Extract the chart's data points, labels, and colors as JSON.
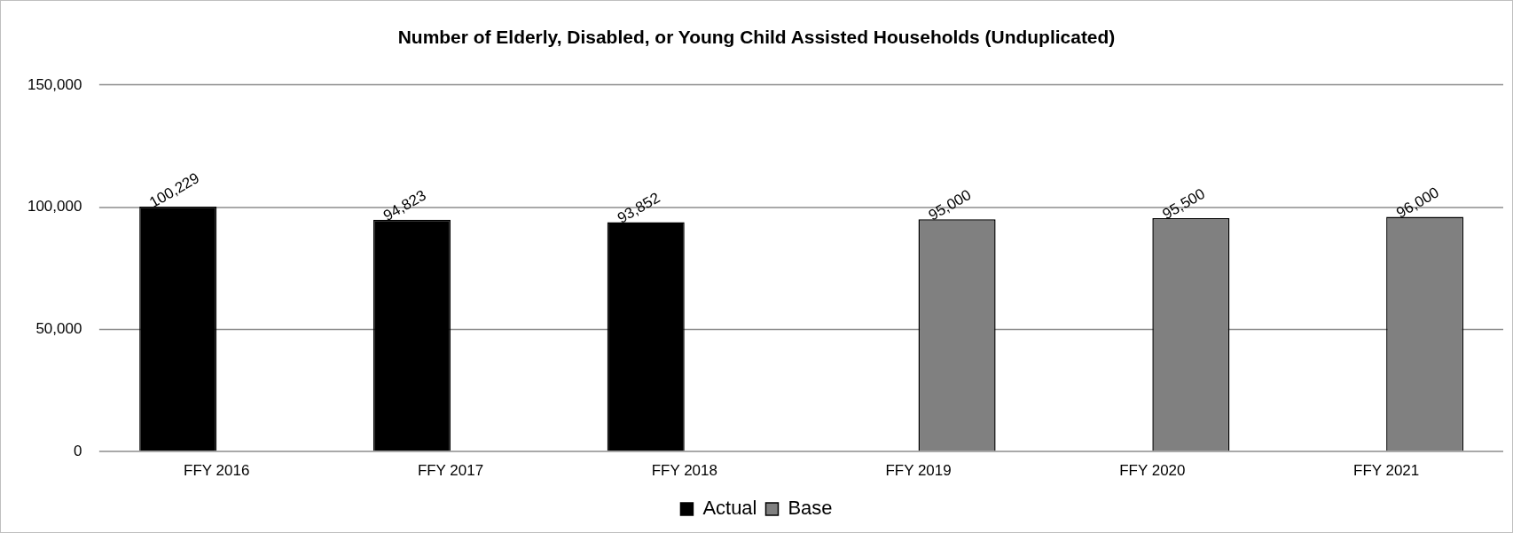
{
  "chart_data": {
    "type": "bar",
    "title": "Number of Elderly, Disabled, or Young Child Assisted Households (Unduplicated)",
    "categories": [
      "FFY 2016",
      "FFY 2017",
      "FFY 2018",
      "FFY 2019",
      "FFY 2020",
      "FFY 2021"
    ],
    "series": [
      {
        "name": "Actual",
        "color": "#000000",
        "values": [
          100229,
          94823,
          93852,
          null,
          null,
          null
        ],
        "value_labels": [
          "100,229",
          "94,823",
          "93,852",
          null,
          null,
          null
        ]
      },
      {
        "name": "Base",
        "color": "#808080",
        "values": [
          null,
          null,
          null,
          95000,
          95500,
          96000
        ],
        "value_labels": [
          null,
          null,
          null,
          "95,000",
          "95,500",
          "96,000"
        ]
      }
    ],
    "ylim": [
      0,
      150000
    ],
    "yticks": [
      {
        "value": 0,
        "label": "0"
      },
      {
        "value": 50000,
        "label": "50,000"
      },
      {
        "value": 100000,
        "label": "100,000"
      },
      {
        "value": 150000,
        "label": "150,000"
      }
    ],
    "grid": "y",
    "legend": "bottom"
  }
}
